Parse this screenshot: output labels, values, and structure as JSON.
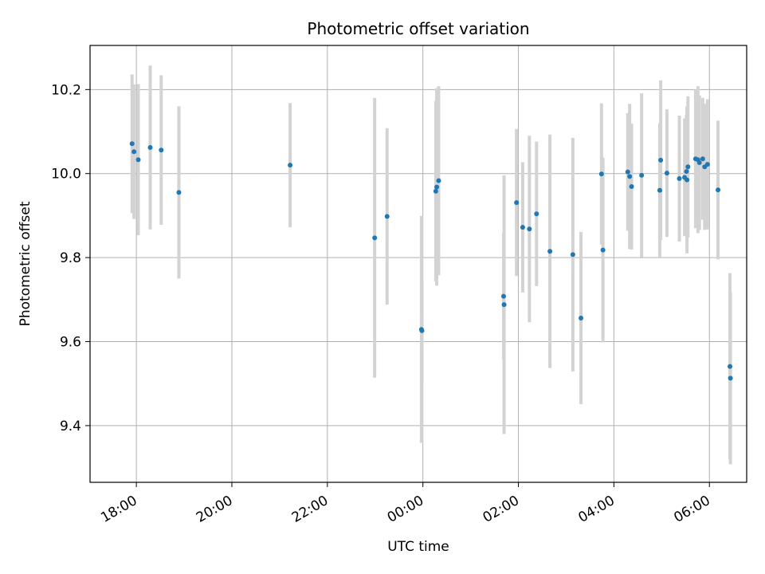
{
  "chart_data": {
    "type": "scatter",
    "title": "Photometric offset variation",
    "xlabel": "UTC time",
    "ylabel": "Photometric offset",
    "x_units": "hours since 00:00 UTC",
    "xlim": [
      -6.97,
      6.78
    ],
    "ylim": [
      9.265,
      10.305
    ],
    "grid": true,
    "x_ticks": [
      {
        "value": -6,
        "label": "18:00"
      },
      {
        "value": -4,
        "label": "20:00"
      },
      {
        "value": -2,
        "label": "22:00"
      },
      {
        "value": 0,
        "label": "00:00"
      },
      {
        "value": 2,
        "label": "02:00"
      },
      {
        "value": 4,
        "label": "04:00"
      },
      {
        "value": 6,
        "label": "06:00"
      }
    ],
    "y_ticks": [
      {
        "value": 9.4,
        "label": "9.4"
      },
      {
        "value": 9.6,
        "label": "9.6"
      },
      {
        "value": 9.8,
        "label": "9.8"
      },
      {
        "value": 10.0,
        "label": "10.0"
      },
      {
        "value": 10.2,
        "label": "10.2"
      }
    ],
    "marker_color": "#1f77b4",
    "errorbar_color": "#d3d3d3",
    "points": [
      {
        "x": -6.09,
        "y": 10.071,
        "err": 0.165
      },
      {
        "x": -6.05,
        "y": 10.052,
        "err": 0.16
      },
      {
        "x": -5.96,
        "y": 10.033,
        "err": 0.18
      },
      {
        "x": -5.71,
        "y": 10.062,
        "err": 0.195
      },
      {
        "x": -5.48,
        "y": 10.056,
        "err": 0.178
      },
      {
        "x": -5.11,
        "y": 9.955,
        "err": 0.205
      },
      {
        "x": -2.78,
        "y": 10.02,
        "err": 0.148
      },
      {
        "x": -1.01,
        "y": 9.847,
        "err": 0.333
      },
      {
        "x": -0.75,
        "y": 9.898,
        "err": 0.21
      },
      {
        "x": -0.03,
        "y": 9.629,
        "err": 0.27
      },
      {
        "x": -0.02,
        "y": 9.626,
        "err": 0.12
      },
      {
        "x": 0.27,
        "y": 9.958,
        "err": 0.215
      },
      {
        "x": 0.29,
        "y": 9.968,
        "err": 0.235
      },
      {
        "x": 0.33,
        "y": 9.983,
        "err": 0.225
      },
      {
        "x": 1.69,
        "y": 9.708,
        "err": 0.15
      },
      {
        "x": 1.7,
        "y": 9.688,
        "err": 0.308
      },
      {
        "x": 1.96,
        "y": 9.931,
        "err": 0.175
      },
      {
        "x": 2.09,
        "y": 9.872,
        "err": 0.155
      },
      {
        "x": 2.23,
        "y": 9.868,
        "err": 0.222
      },
      {
        "x": 2.38,
        "y": 9.904,
        "err": 0.172
      },
      {
        "x": 2.66,
        "y": 9.815,
        "err": 0.278
      },
      {
        "x": 3.14,
        "y": 9.807,
        "err": 0.278
      },
      {
        "x": 3.31,
        "y": 9.656,
        "err": 0.205
      },
      {
        "x": 3.74,
        "y": 9.999,
        "err": 0.168
      },
      {
        "x": 3.77,
        "y": 9.818,
        "err": 0.22
      },
      {
        "x": 4.29,
        "y": 10.004,
        "err": 0.14
      },
      {
        "x": 4.33,
        "y": 9.993,
        "err": 0.173
      },
      {
        "x": 4.37,
        "y": 9.969,
        "err": 0.15
      },
      {
        "x": 4.58,
        "y": 9.996,
        "err": 0.195
      },
      {
        "x": 4.96,
        "y": 9.96,
        "err": 0.16
      },
      {
        "x": 4.98,
        "y": 10.032,
        "err": 0.19
      },
      {
        "x": 5.11,
        "y": 10.001,
        "err": 0.152
      },
      {
        "x": 5.37,
        "y": 9.988,
        "err": 0.15
      },
      {
        "x": 5.48,
        "y": 9.991,
        "err": 0.14
      },
      {
        "x": 5.52,
        "y": 10.005,
        "err": 0.135
      },
      {
        "x": 5.53,
        "y": 9.985,
        "err": 0.175
      },
      {
        "x": 5.55,
        "y": 10.016,
        "err": 0.168
      },
      {
        "x": 5.71,
        "y": 10.035,
        "err": 0.165
      },
      {
        "x": 5.76,
        "y": 10.033,
        "err": 0.175
      },
      {
        "x": 5.79,
        "y": 10.026,
        "err": 0.16
      },
      {
        "x": 5.86,
        "y": 10.035,
        "err": 0.145
      },
      {
        "x": 5.9,
        "y": 10.016,
        "err": 0.15
      },
      {
        "x": 5.96,
        "y": 10.022,
        "err": 0.155
      },
      {
        "x": 6.18,
        "y": 9.961,
        "err": 0.165
      },
      {
        "x": 6.43,
        "y": 9.541,
        "err": 0.222
      },
      {
        "x": 6.44,
        "y": 9.513,
        "err": 0.205
      }
    ]
  }
}
